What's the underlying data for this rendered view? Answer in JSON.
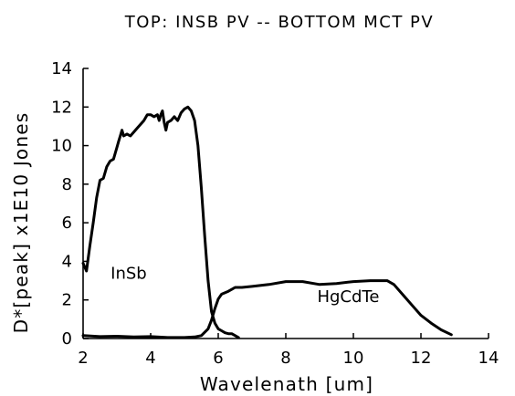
{
  "chart_data": {
    "type": "line",
    "title": "TOP: INSB PV -- BOTTOM MCT PV",
    "xlabel": "Wavelenath [um]",
    "ylabel": "D*[peak] x1E10 Jones",
    "xlim": [
      2,
      14
    ],
    "ylim": [
      0,
      14
    ],
    "xticks": [
      "2",
      "4",
      "6",
      "8",
      "10",
      "12",
      "14"
    ],
    "yticks": [
      "0",
      "2",
      "4",
      "6",
      "8",
      "10",
      "12",
      "14"
    ],
    "grid": false,
    "legend": "none",
    "line_color": "#000000",
    "series": [
      {
        "name": "InSb",
        "label_at": [
          3.35,
          3.1
        ],
        "points": [
          [
            2.0,
            3.9
          ],
          [
            2.1,
            3.5
          ],
          [
            2.2,
            4.8
          ],
          [
            2.3,
            6.0
          ],
          [
            2.4,
            7.3
          ],
          [
            2.5,
            8.2
          ],
          [
            2.6,
            8.3
          ],
          [
            2.7,
            8.9
          ],
          [
            2.8,
            9.2
          ],
          [
            2.9,
            9.3
          ],
          [
            3.0,
            9.9
          ],
          [
            3.05,
            10.2
          ],
          [
            3.1,
            10.5
          ],
          [
            3.15,
            10.8
          ],
          [
            3.2,
            10.5
          ],
          [
            3.3,
            10.6
          ],
          [
            3.4,
            10.5
          ],
          [
            3.6,
            10.9
          ],
          [
            3.8,
            11.3
          ],
          [
            3.9,
            11.6
          ],
          [
            4.0,
            11.6
          ],
          [
            4.1,
            11.5
          ],
          [
            4.2,
            11.6
          ],
          [
            4.25,
            11.3
          ],
          [
            4.3,
            11.6
          ],
          [
            4.35,
            11.8
          ],
          [
            4.4,
            11.2
          ],
          [
            4.45,
            10.8
          ],
          [
            4.5,
            11.2
          ],
          [
            4.6,
            11.3
          ],
          [
            4.7,
            11.5
          ],
          [
            4.8,
            11.3
          ],
          [
            4.9,
            11.7
          ],
          [
            5.0,
            11.9
          ],
          [
            5.1,
            12.0
          ],
          [
            5.2,
            11.8
          ],
          [
            5.3,
            11.3
          ],
          [
            5.4,
            10.0
          ],
          [
            5.5,
            7.8
          ],
          [
            5.6,
            5.3
          ],
          [
            5.7,
            3.0
          ],
          [
            5.8,
            1.4
          ],
          [
            5.9,
            0.8
          ],
          [
            6.0,
            0.5
          ],
          [
            6.1,
            0.4
          ],
          [
            6.2,
            0.3
          ],
          [
            6.3,
            0.25
          ],
          [
            6.4,
            0.25
          ],
          [
            6.5,
            0.15
          ],
          [
            6.6,
            0.05
          ]
        ]
      },
      {
        "name": "HgCdTe",
        "label_at": [
          9.85,
          1.9
        ],
        "points": [
          [
            2.0,
            0.15
          ],
          [
            2.5,
            0.1
          ],
          [
            3.0,
            0.12
          ],
          [
            3.5,
            0.08
          ],
          [
            4.0,
            0.1
          ],
          [
            4.5,
            0.05
          ],
          [
            5.0,
            0.05
          ],
          [
            5.3,
            0.08
          ],
          [
            5.5,
            0.15
          ],
          [
            5.7,
            0.5
          ],
          [
            5.8,
            0.95
          ],
          [
            5.9,
            1.55
          ],
          [
            6.0,
            2.05
          ],
          [
            6.1,
            2.3
          ],
          [
            6.3,
            2.45
          ],
          [
            6.5,
            2.65
          ],
          [
            6.7,
            2.65
          ],
          [
            7.0,
            2.7
          ],
          [
            7.5,
            2.8
          ],
          [
            8.0,
            2.95
          ],
          [
            8.5,
            2.95
          ],
          [
            9.0,
            2.8
          ],
          [
            9.5,
            2.85
          ],
          [
            10.0,
            2.95
          ],
          [
            10.5,
            3.0
          ],
          [
            11.0,
            3.0
          ],
          [
            11.2,
            2.8
          ],
          [
            11.5,
            2.2
          ],
          [
            11.8,
            1.6
          ],
          [
            12.0,
            1.2
          ],
          [
            12.3,
            0.8
          ],
          [
            12.6,
            0.45
          ],
          [
            12.9,
            0.2
          ]
        ]
      }
    ]
  }
}
